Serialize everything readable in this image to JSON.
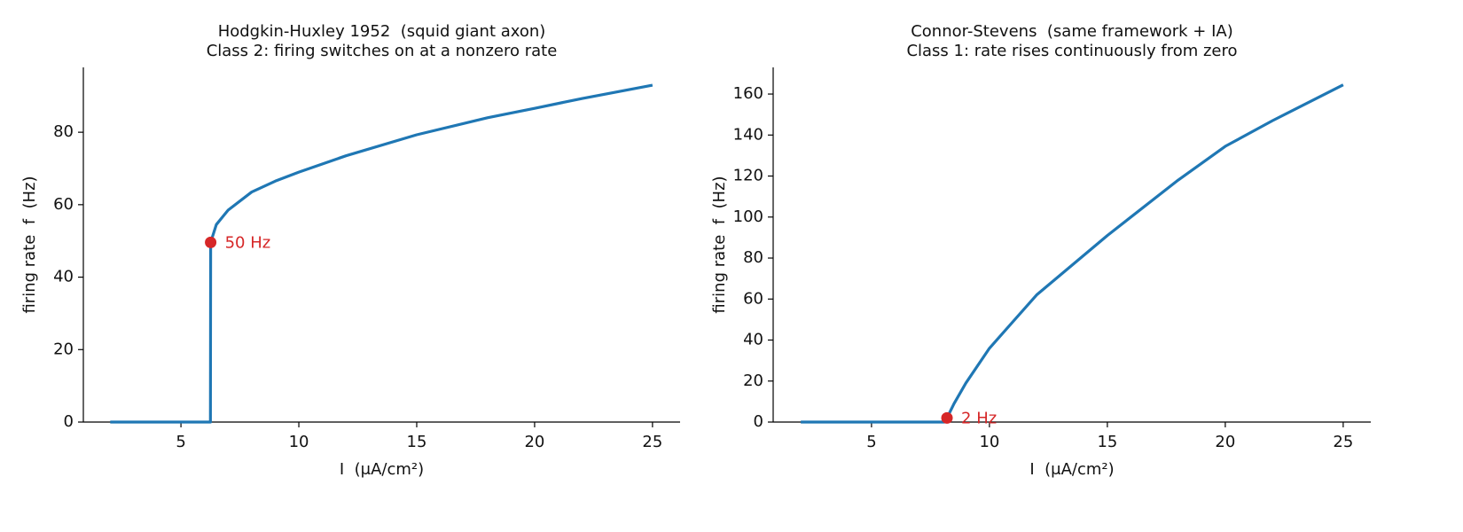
{
  "chart_data": [
    {
      "type": "line",
      "title": "Hodgkin-Huxley 1952  (squid giant axon)",
      "subtitle": "Class 2: firing switches on at a nonzero rate",
      "xlabel": "I  (μA/cm²)",
      "ylabel": "firing rate  f  (Hz)",
      "x": [
        2,
        6.25,
        6.26,
        6.5,
        7,
        8,
        9,
        10,
        12,
        15,
        18,
        20,
        22,
        25
      ],
      "values": [
        0,
        0,
        49.6,
        54.5,
        58.5,
        63.5,
        66.5,
        69,
        73.5,
        79.3,
        84,
        86.6,
        89.3,
        93
      ],
      "color": "#1f77b4",
      "marker": {
        "x": 6.26,
        "y": 49.6,
        "label": "50 Hz",
        "color": "#d62728"
      },
      "xlim": [
        0.86,
        26.17
      ],
      "xticks": [
        5,
        10,
        15,
        20,
        25
      ],
      "ylim": [
        0,
        97.9
      ],
      "yticks": [
        0,
        20,
        40,
        60,
        80
      ]
    },
    {
      "type": "line",
      "title": "Connor-Stevens  (same framework + IA)",
      "subtitle": "Class 1: rate rises continuously from zero",
      "xlabel": "I  (μA/cm²)",
      "ylabel": "firing rate  f  (Hz)",
      "x": [
        2,
        8.1,
        8.2,
        8.5,
        9,
        10,
        12,
        15,
        18,
        20,
        22,
        25
      ],
      "values": [
        0,
        0,
        2,
        9,
        19,
        36,
        62,
        91,
        118,
        134.5,
        147,
        164.5
      ],
      "color": "#1f77b4",
      "marker": {
        "x": 8.2,
        "y": 2,
        "label": "2 Hz",
        "color": "#d62728"
      },
      "xlim": [
        0.83,
        26.17
      ],
      "xticks": [
        5,
        10,
        15,
        20,
        25
      ],
      "ylim": [
        0,
        173
      ],
      "yticks": [
        0,
        20,
        40,
        60,
        80,
        100,
        120,
        140,
        160
      ]
    }
  ]
}
